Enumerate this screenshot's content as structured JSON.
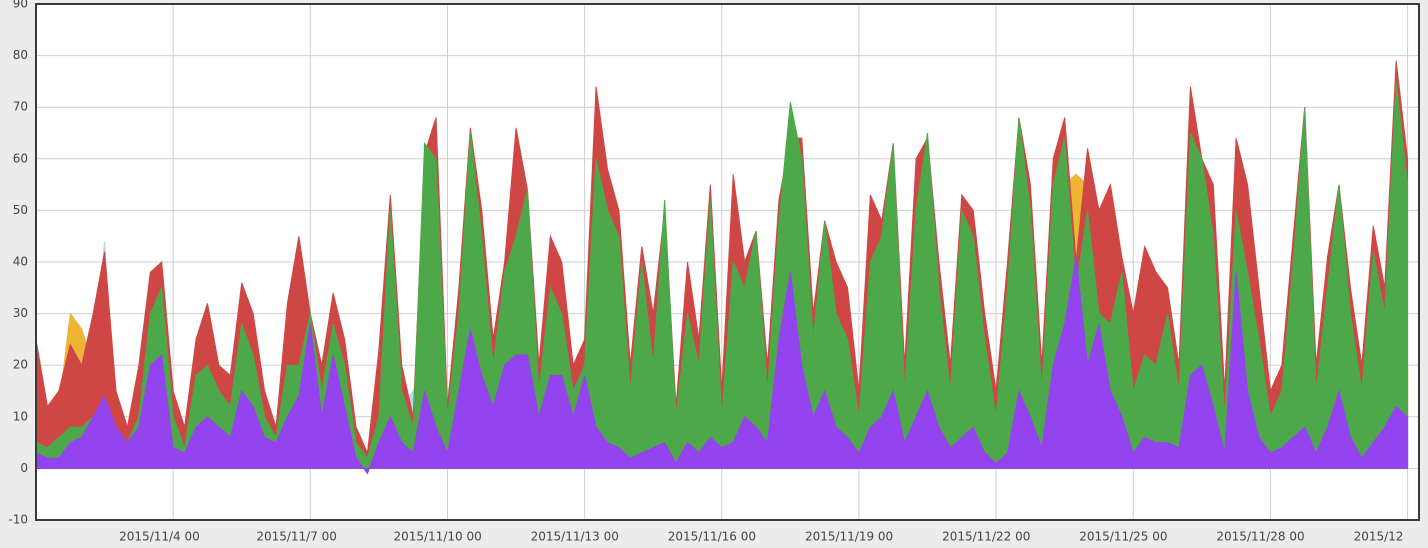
{
  "chart_data": {
    "type": "area",
    "x": [
      "2015/11/1 00",
      "2015/11/1 06",
      "2015/11/1 12",
      "2015/11/1 18",
      "2015/11/2 00",
      "2015/11/2 06",
      "2015/11/2 12",
      "2015/11/2 18",
      "2015/11/3 00",
      "2015/11/3 06",
      "2015/11/3 12",
      "2015/11/3 18",
      "2015/11/4 00",
      "2015/11/4 06",
      "2015/11/4 12",
      "2015/11/4 18",
      "2015/11/5 00",
      "2015/11/5 06",
      "2015/11/5 12",
      "2015/11/5 18",
      "2015/11/6 00",
      "2015/11/6 06",
      "2015/11/6 12",
      "2015/11/6 18",
      "2015/11/7 00",
      "2015/11/7 06",
      "2015/11/7 12",
      "2015/11/7 18",
      "2015/11/8 00",
      "2015/11/8 06",
      "2015/11/8 12",
      "2015/11/8 18",
      "2015/11/9 00",
      "2015/11/9 06",
      "2015/11/9 12",
      "2015/11/9 18",
      "2015/11/10 00",
      "2015/11/10 06",
      "2015/11/10 12",
      "2015/11/10 18",
      "2015/11/11 00",
      "2015/11/11 06",
      "2015/11/11 12",
      "2015/11/11 18",
      "2015/11/12 00",
      "2015/11/12 06",
      "2015/11/12 12",
      "2015/11/12 18",
      "2015/11/13 00",
      "2015/11/13 06",
      "2015/11/13 12",
      "2015/11/13 18",
      "2015/11/14 00",
      "2015/11/14 06",
      "2015/11/14 12",
      "2015/11/14 18",
      "2015/11/15 00",
      "2015/11/15 06",
      "2015/11/15 12",
      "2015/11/15 18",
      "2015/11/16 00",
      "2015/11/16 06",
      "2015/11/16 12",
      "2015/11/16 18",
      "2015/11/17 00",
      "2015/11/17 06",
      "2015/11/17 12",
      "2015/11/17 18",
      "2015/11/18 00",
      "2015/11/18 06",
      "2015/11/18 12",
      "2015/11/18 18",
      "2015/11/19 00",
      "2015/11/19 06",
      "2015/11/19 12",
      "2015/11/19 18",
      "2015/11/20 00",
      "2015/11/20 06",
      "2015/11/20 12",
      "2015/11/20 18",
      "2015/11/21 00",
      "2015/11/21 06",
      "2015/11/21 12",
      "2015/11/21 18",
      "2015/11/22 00",
      "2015/11/22 06",
      "2015/11/22 12",
      "2015/11/22 18",
      "2015/11/23 00",
      "2015/11/23 06",
      "2015/11/23 12",
      "2015/11/23 18",
      "2015/11/24 00",
      "2015/11/24 06",
      "2015/11/24 12",
      "2015/11/24 18",
      "2015/11/25 00",
      "2015/11/25 06",
      "2015/11/25 12",
      "2015/11/25 18",
      "2015/11/26 00",
      "2015/11/26 06",
      "2015/11/26 12",
      "2015/11/26 18",
      "2015/11/27 00",
      "2015/11/27 06",
      "2015/11/27 12",
      "2015/11/27 18",
      "2015/11/28 00",
      "2015/11/28 06",
      "2015/11/28 12",
      "2015/11/28 18",
      "2015/11/29 00",
      "2015/11/29 06",
      "2015/11/29 12",
      "2015/11/29 18",
      "2015/11/30 00",
      "2015/11/30 06",
      "2015/11/30 12",
      "2015/11/30 18",
      "2015/12/1 00"
    ],
    "xlim": [
      "2015/11/1 00",
      "2015/12/1 06"
    ],
    "xticks": [
      "2015/11/4 00",
      "2015/11/7 00",
      "2015/11/10 00",
      "2015/11/13 00",
      "2015/11/16 00",
      "2015/11/19 00",
      "2015/11/22 00",
      "2015/11/25 00",
      "2015/11/28 00",
      {
        "value": "2015/12/1 00",
        "label": "2015/12"
      }
    ],
    "ylim": [
      -10,
      90
    ],
    "yticks": [
      -10,
      0,
      10,
      20,
      30,
      40,
      50,
      60,
      70,
      80,
      90
    ],
    "grid": true,
    "series": [
      {
        "color": "#b4d6f2",
        "values": [
          8,
          5,
          10,
          18,
          15,
          20,
          44,
          10,
          5,
          12,
          25,
          20,
          10,
          4,
          12,
          15,
          10,
          8,
          20,
          15,
          8,
          5,
          12,
          12,
          20,
          8,
          15,
          10,
          5,
          2,
          10,
          15,
          12,
          15,
          20,
          15,
          15,
          20,
          25,
          20,
          12,
          20,
          25,
          43,
          10,
          15,
          20,
          10,
          10,
          20,
          20,
          15,
          8,
          15,
          10,
          20,
          6,
          15,
          10,
          20,
          6,
          15,
          15,
          20,
          8,
          15,
          20,
          15,
          10,
          15,
          20,
          15,
          6,
          15,
          15,
          20,
          8,
          12,
          15,
          10,
          8,
          12,
          10,
          8,
          6,
          15,
          20,
          15,
          8,
          20,
          25,
          25,
          15,
          15,
          15,
          15,
          8,
          10,
          10,
          15,
          8,
          15,
          15,
          12,
          6,
          15,
          15,
          10,
          6,
          8,
          12,
          20,
          8,
          12,
          15,
          22,
          8,
          12,
          10,
          15,
          15
        ]
      },
      {
        "color": "#eeb535",
        "values": [
          10,
          8,
          12,
          30,
          27,
          20,
          35,
          10,
          6,
          15,
          30,
          22,
          14,
          6,
          16,
          20,
          12,
          10,
          25,
          20,
          10,
          6,
          18,
          15,
          30,
          12,
          20,
          18,
          8,
          3,
          15,
          20,
          18,
          6,
          30,
          25,
          10,
          20,
          30,
          25,
          15,
          25,
          30,
          40,
          12,
          20,
          30,
          15,
          15,
          40,
          30,
          25,
          10,
          20,
          15,
          25,
          8,
          20,
          12,
          30,
          8,
          30,
          20,
          25,
          10,
          30,
          40,
          30,
          20,
          35,
          40,
          35,
          8,
          25,
          25,
          30,
          10,
          25,
          30,
          20,
          10,
          25,
          20,
          15,
          8,
          20,
          30,
          25,
          10,
          40,
          55,
          57,
          55,
          35,
          30,
          20,
          12,
          15,
          15,
          20,
          10,
          30,
          25,
          20,
          8,
          25,
          20,
          15,
          8,
          10,
          20,
          25,
          10,
          20,
          25,
          15,
          10,
          20,
          15,
          30,
          20
        ]
      },
      {
        "color": "#cf4745",
        "values": [
          25,
          12,
          15,
          24,
          20,
          30,
          42,
          15,
          8,
          20,
          38,
          40,
          15,
          8,
          25,
          32,
          20,
          18,
          36,
          30,
          15,
          8,
          32,
          45,
          30,
          20,
          34,
          25,
          8,
          3,
          23,
          53,
          20,
          10,
          61,
          68,
          12,
          35,
          66,
          50,
          25,
          40,
          66,
          54,
          20,
          45,
          40,
          20,
          25,
          74,
          58,
          50,
          20,
          43,
          30,
          50,
          12,
          40,
          25,
          55,
          15,
          57,
          40,
          46,
          20,
          52,
          64,
          64,
          30,
          48,
          40,
          35,
          15,
          53,
          48,
          63,
          20,
          60,
          64,
          40,
          20,
          53,
          50,
          30,
          15,
          40,
          68,
          55,
          20,
          60,
          68,
          40,
          62,
          50,
          55,
          41,
          30,
          43,
          38,
          35,
          20,
          74,
          60,
          55,
          15,
          64,
          55,
          35,
          15,
          20,
          45,
          70,
          20,
          41,
          55,
          35,
          20,
          47,
          35,
          79,
          60
        ]
      },
      {
        "color": "#4da84a",
        "values": [
          5,
          4,
          6,
          8,
          8,
          10,
          12,
          6,
          5,
          10,
          30,
          35,
          10,
          4,
          18,
          20,
          15,
          12,
          28,
          22,
          10,
          6,
          20,
          20,
          30,
          15,
          28,
          20,
          5,
          2,
          10,
          50,
          15,
          8,
          63,
          60,
          10,
          30,
          65,
          45,
          20,
          38,
          45,
          54,
          15,
          35,
          30,
          15,
          20,
          60,
          50,
          45,
          15,
          40,
          20,
          52,
          10,
          30,
          20,
          52,
          10,
          40,
          35,
          46,
          15,
          48,
          71,
          60,
          25,
          48,
          30,
          25,
          10,
          40,
          45,
          63,
          15,
          50,
          65,
          35,
          15,
          50,
          45,
          25,
          10,
          35,
          68,
          50,
          15,
          55,
          64,
          35,
          50,
          30,
          28,
          38,
          15,
          22,
          20,
          30,
          15,
          65,
          60,
          45,
          10,
          50,
          38,
          25,
          10,
          15,
          40,
          70,
          15,
          35,
          55,
          30,
          15,
          42,
          30,
          75,
          55
        ]
      },
      {
        "color": "#9444ef",
        "values": [
          3,
          2,
          2,
          5,
          6,
          10,
          14,
          8,
          5,
          8,
          20,
          22,
          4,
          3,
          8,
          10,
          8,
          6,
          15,
          12,
          6,
          5,
          10,
          14,
          28,
          10,
          22,
          12,
          2,
          -1,
          5,
          10,
          5,
          3,
          15,
          8,
          3,
          15,
          27,
          18,
          12,
          20,
          22,
          22,
          10,
          18,
          18,
          10,
          18,
          8,
          5,
          4,
          2,
          3,
          4,
          5,
          1,
          5,
          3,
          6,
          4,
          5,
          10,
          8,
          5,
          25,
          38,
          20,
          10,
          15,
          8,
          6,
          3,
          8,
          10,
          15,
          5,
          10,
          15,
          8,
          4,
          6,
          8,
          3,
          1,
          3,
          15,
          10,
          4,
          20,
          28,
          41,
          20,
          28,
          15,
          10,
          3,
          6,
          5,
          5,
          4,
          18,
          20,
          12,
          3,
          38,
          15,
          6,
          3,
          4,
          6,
          8,
          3,
          8,
          15,
          6,
          2,
          5,
          8,
          12,
          10
        ]
      }
    ]
  }
}
